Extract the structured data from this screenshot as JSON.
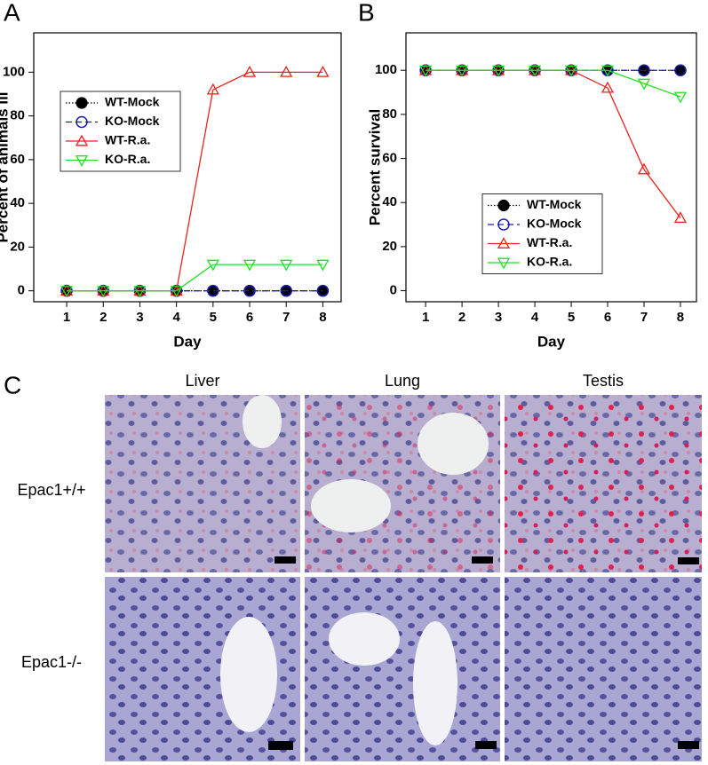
{
  "chart_data": [
    {
      "type": "line",
      "panel_label": "A",
      "x_label": "Day",
      "y_label": "Percent of animals ill",
      "x": [
        1,
        2,
        3,
        4,
        5,
        6,
        7,
        8
      ],
      "xlim": [
        0.1,
        8.5
      ],
      "xticks": [
        1,
        2,
        3,
        4,
        5,
        6,
        7,
        8
      ],
      "ylim": [
        -5,
        118
      ],
      "yticks": [
        0,
        20,
        40,
        60,
        80,
        100
      ],
      "legend": "left",
      "series": [
        {
          "name": "WT-Mock",
          "color": "#000000",
          "marker": "circle-filled",
          "dash": "dotted",
          "values": [
            0,
            0,
            0,
            0,
            0,
            0,
            0,
            0
          ]
        },
        {
          "name": "KO-Mock",
          "color": "#1a1ab8",
          "marker": "circle-open",
          "dash": "dashed",
          "values": [
            0,
            0,
            0,
            0,
            0,
            0,
            0,
            0
          ]
        },
        {
          "name": "WT-R.a.",
          "color": "#e8231d",
          "marker": "triangle-up",
          "dash": "solid",
          "values": [
            0,
            0,
            0,
            0,
            92,
            100,
            100,
            100
          ]
        },
        {
          "name": "KO-R.a.",
          "color": "#22e022",
          "marker": "triangle-down",
          "dash": "solid",
          "values": [
            0,
            0,
            0,
            0,
            12,
            12,
            12,
            12
          ]
        }
      ]
    },
    {
      "type": "line",
      "panel_label": "B",
      "x_label": "Day",
      "y_label": "Percent survival",
      "x": [
        1,
        2,
        3,
        4,
        5,
        6,
        7,
        8
      ],
      "xlim": [
        0.46,
        8.44
      ],
      "xticks": [
        1,
        2,
        3,
        4,
        5,
        6,
        7,
        8
      ],
      "ylim": [
        -5,
        117
      ],
      "yticks": [
        0,
        20,
        40,
        60,
        80,
        100
      ],
      "legend": "center",
      "series": [
        {
          "name": "WT-Mock",
          "color": "#000000",
          "marker": "circle-filled",
          "dash": "dotted",
          "values": [
            100,
            100,
            100,
            100,
            100,
            100,
            100,
            100
          ]
        },
        {
          "name": "KO-Mock",
          "color": "#1a1ab8",
          "marker": "circle-open",
          "dash": "dashed",
          "values": [
            100,
            100,
            100,
            100,
            100,
            100,
            100,
            100
          ]
        },
        {
          "name": "WT-R.a.",
          "color": "#e8231d",
          "marker": "triangle-up",
          "dash": "solid",
          "values": [
            100,
            100,
            100,
            100,
            100,
            92,
            55,
            33
          ]
        },
        {
          "name": "KO-R.a.",
          "color": "#22e022",
          "marker": "triangle-down",
          "dash": "solid",
          "values": [
            100,
            100,
            100,
            100,
            100,
            100,
            94,
            88
          ]
        }
      ]
    }
  ],
  "panel_c": {
    "label": "C",
    "columns": [
      "Liver",
      "Lung",
      "Testis"
    ],
    "rows": [
      "Epac1+/+",
      "Epac1-/-"
    ]
  }
}
